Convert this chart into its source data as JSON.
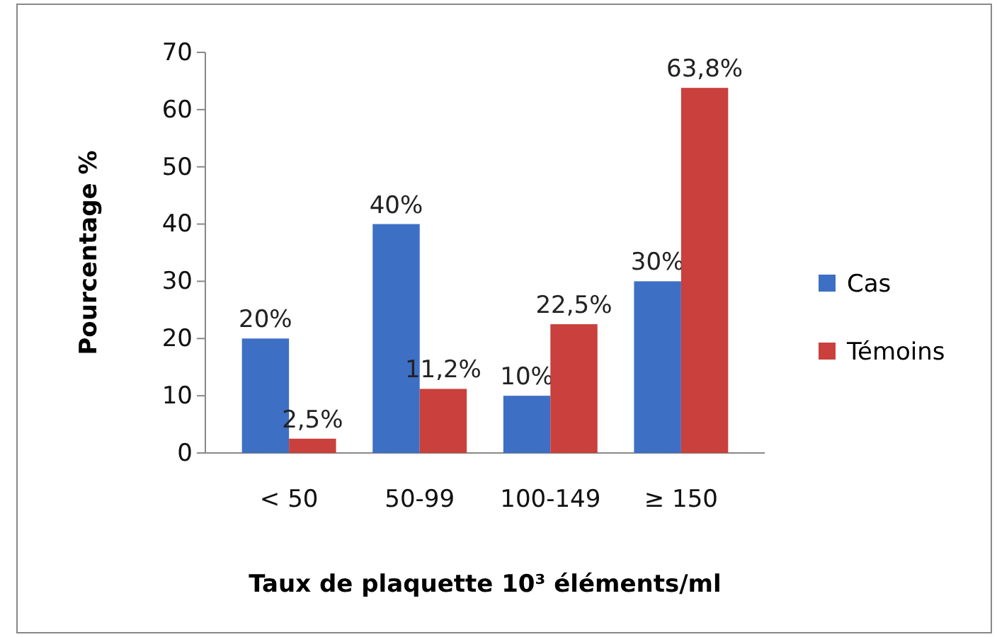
{
  "chart_data": {
    "type": "bar",
    "ylabel": "Pourcentage %",
    "xlabel": "Taux de plaquette 10³ éléments/ml",
    "categories": [
      "< 50",
      "50-99",
      "100-149",
      "≥ 150"
    ],
    "series": [
      {
        "name": "Cas",
        "color": "#3d6fc4",
        "values": [
          20,
          40,
          10,
          30
        ],
        "value_labels": [
          "20%",
          "40%",
          "10%",
          "30%"
        ]
      },
      {
        "name": "Témoins",
        "color": "#c9403c",
        "values": [
          2.5,
          11.2,
          22.5,
          63.8
        ],
        "value_labels": [
          "2,5%",
          "11,2%",
          "22,5%",
          "63,8%"
        ]
      }
    ],
    "ylim": [
      0,
      70
    ],
    "yticks": [
      0,
      10,
      20,
      30,
      40,
      50,
      60,
      70
    ],
    "grid": false,
    "legend": "right"
  }
}
